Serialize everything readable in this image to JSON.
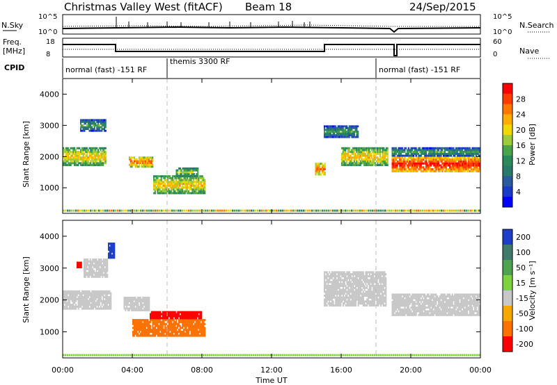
{
  "header": {
    "title": "Christmas Valley West (fitACF)",
    "beam": "Beam 18",
    "date": "24/Sep/2015"
  },
  "top_panels": {
    "nsky_label": "N.Sky",
    "nsky_ticks": [
      "10^5",
      "10^0"
    ],
    "nsearch_label": "N.Search",
    "nsearch_ticks": [
      "10^5",
      "10^0"
    ],
    "freq_label_1": "Freq.",
    "freq_label_2": "[MHz]",
    "freq_ticks": [
      "18",
      "8"
    ],
    "nave_label": "Nave",
    "nave_ticks": [
      "60",
      "0"
    ],
    "cpid_label": "CPID",
    "cpid_modes": [
      {
        "label": "normal (fast) -151 RF",
        "start_hour": 0,
        "end_hour": 6
      },
      {
        "label": "themis 3300 RF",
        "start_hour": 6,
        "end_hour": 18
      },
      {
        "label": "normal (fast) -151 RF",
        "start_hour": 18,
        "end_hour": 24
      }
    ]
  },
  "power_colorbar": {
    "label": "Power [dB]",
    "ticks": [
      "28",
      "24",
      "20",
      "16",
      "12",
      "8",
      "4"
    ],
    "colors": [
      "#ff0000",
      "#ff3b00",
      "#ff7700",
      "#ffae00",
      "#f2d700",
      "#9ecb3b",
      "#4aa44a",
      "#2a8a5a",
      "#2a7a6a",
      "#2a5aa0",
      "#1a3ac8",
      "#0000ff"
    ]
  },
  "velocity_colorbar": {
    "label": "Velocity [m s⁻¹]",
    "ticks": [
      "200",
      "100",
      "50",
      "15",
      "-15",
      "-50",
      "-100",
      "-200"
    ],
    "colors": [
      "#1f3ec8",
      "#3f7a6a",
      "#4fa24f",
      "#7fd23f",
      "#c8c8c8",
      "#f5a800",
      "#ff7200",
      "#ff0000"
    ]
  },
  "chart_data": [
    {
      "type": "heatmap",
      "name": "power",
      "ylabel": "Slant Range [km]",
      "xlabel": "Time UT",
      "x_ticks": [
        "00:00",
        "04:00",
        "08:00",
        "12:00",
        "16:00",
        "20:00",
        "00:00"
      ],
      "y_ticks": [
        "4000",
        "3000",
        "2000",
        "1000"
      ],
      "ylim": [
        180,
        4500
      ],
      "xlim": [
        0,
        24
      ],
      "regions": [
        {
          "t0": 0.0,
          "t1": 2.5,
          "r0": 1700,
          "r1": 2300,
          "level": 20
        },
        {
          "t0": 1.0,
          "t1": 2.5,
          "r0": 2800,
          "r1": 3200,
          "level": 12
        },
        {
          "t0": 3.8,
          "t1": 5.2,
          "r0": 1650,
          "r1": 2000,
          "level": 24
        },
        {
          "t0": 5.2,
          "t1": 8.2,
          "r0": 800,
          "r1": 1400,
          "level": 20
        },
        {
          "t0": 6.5,
          "t1": 7.8,
          "r0": 1350,
          "r1": 1650,
          "level": 16
        },
        {
          "t0": 14.5,
          "t1": 15.1,
          "r0": 1400,
          "r1": 1800,
          "level": 24
        },
        {
          "t0": 15.0,
          "t1": 17.0,
          "r0": 2600,
          "r1": 3000,
          "level": 12
        },
        {
          "t0": 16.0,
          "t1": 18.7,
          "r0": 1700,
          "r1": 2300,
          "level": 20
        },
        {
          "t0": 18.9,
          "t1": 24.0,
          "r0": 1500,
          "r1": 2000,
          "level": 28
        },
        {
          "t0": 18.9,
          "t1": 24.0,
          "r0": 2000,
          "r1": 2300,
          "level": 12
        }
      ]
    },
    {
      "type": "heatmap",
      "name": "velocity",
      "ylabel": "Slant Range [km]",
      "xlabel": "Time UT",
      "x_ticks": [
        "00:00",
        "04:00",
        "08:00",
        "12:00",
        "16:00",
        "20:00",
        "00:00"
      ],
      "y_ticks": [
        "4000",
        "3000",
        "2000",
        "1000"
      ],
      "ylim": [
        180,
        4500
      ],
      "xlim": [
        0,
        24
      ],
      "regions": [
        {
          "t0": 0.0,
          "t1": 2.8,
          "r0": 1700,
          "r1": 2300,
          "velocity": 0
        },
        {
          "t0": 1.2,
          "t1": 2.6,
          "r0": 2700,
          "r1": 3300,
          "velocity": 0
        },
        {
          "t0": 2.6,
          "t1": 3.0,
          "r0": 3300,
          "r1": 3800,
          "velocity": 250
        },
        {
          "t0": 0.8,
          "t1": 1.1,
          "r0": 3000,
          "r1": 3200,
          "velocity": -250
        },
        {
          "t0": 3.5,
          "t1": 5.0,
          "r0": 1650,
          "r1": 2100,
          "velocity": 0
        },
        {
          "t0": 4.0,
          "t1": 8.2,
          "r0": 850,
          "r1": 1400,
          "velocity": -60
        },
        {
          "t0": 5.0,
          "t1": 8.0,
          "r0": 1400,
          "r1": 1650,
          "velocity": -250
        },
        {
          "t0": 15.0,
          "t1": 18.6,
          "r0": 1800,
          "r1": 2900,
          "velocity": 0
        },
        {
          "t0": 18.9,
          "t1": 24.0,
          "r0": 1500,
          "r1": 2200,
          "velocity": 0
        }
      ]
    }
  ]
}
